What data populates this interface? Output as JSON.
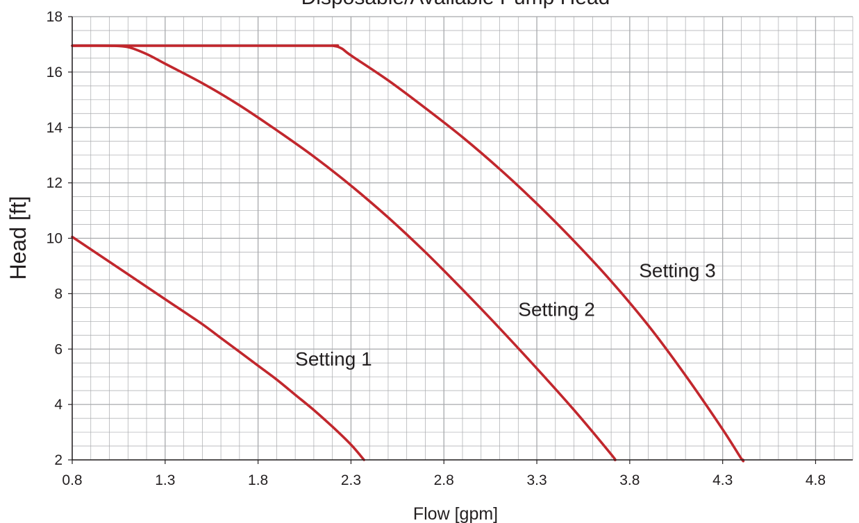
{
  "chart_data": {
    "type": "line",
    "title": "Disposable/Available Pump Head",
    "xlabel": "Flow [gpm]",
    "ylabel": "Head [ft]",
    "xlim": [
      0.8,
      5.0
    ],
    "ylim": [
      2,
      18
    ],
    "x_ticks": [
      "0.8",
      "1.3",
      "1.8",
      "2.3",
      "2.8",
      "3.3",
      "3.8",
      "4.3",
      "4.8"
    ],
    "y_ticks": [
      "2",
      "4",
      "6",
      "8",
      "10",
      "12",
      "14",
      "16",
      "18"
    ],
    "grid": true,
    "colors": {
      "curve": "#c1272d",
      "grid": "#a7a9ac",
      "axis": "#231f20"
    },
    "series": [
      {
        "name": "Setting 1",
        "points": [
          [
            0.8,
            10.05
          ],
          [
            0.9,
            9.6
          ],
          [
            1.0,
            9.15
          ],
          [
            1.1,
            8.7
          ],
          [
            1.2,
            8.25
          ],
          [
            1.3,
            7.8
          ],
          [
            1.4,
            7.35
          ],
          [
            1.5,
            6.9
          ],
          [
            1.6,
            6.4
          ],
          [
            1.7,
            5.9
          ],
          [
            1.8,
            5.4
          ],
          [
            1.9,
            4.9
          ],
          [
            2.0,
            4.35
          ],
          [
            2.1,
            3.8
          ],
          [
            2.2,
            3.2
          ],
          [
            2.3,
            2.55
          ],
          [
            2.37,
            2.0
          ]
        ]
      },
      {
        "name": "Setting 2",
        "points": [
          [
            0.8,
            16.95
          ],
          [
            1.0,
            16.95
          ],
          [
            1.1,
            16.9
          ],
          [
            1.2,
            16.65
          ],
          [
            1.3,
            16.3
          ],
          [
            1.5,
            15.6
          ],
          [
            1.7,
            14.8
          ],
          [
            1.9,
            13.9
          ],
          [
            2.1,
            12.95
          ],
          [
            2.3,
            11.9
          ],
          [
            2.5,
            10.75
          ],
          [
            2.7,
            9.5
          ],
          [
            2.9,
            8.15
          ],
          [
            3.1,
            6.75
          ],
          [
            3.3,
            5.3
          ],
          [
            3.5,
            3.8
          ],
          [
            3.7,
            2.2
          ],
          [
            3.72,
            2.0
          ]
        ]
      },
      {
        "name": "Setting 3",
        "points": [
          [
            0.8,
            16.95
          ],
          [
            2.1,
            16.95
          ],
          [
            2.2,
            16.95
          ],
          [
            2.25,
            16.85
          ],
          [
            2.3,
            16.6
          ],
          [
            2.5,
            15.7
          ],
          [
            2.7,
            14.7
          ],
          [
            2.9,
            13.65
          ],
          [
            3.1,
            12.5
          ],
          [
            3.3,
            11.25
          ],
          [
            3.5,
            9.9
          ],
          [
            3.7,
            8.45
          ],
          [
            3.9,
            6.85
          ],
          [
            4.1,
            5.05
          ],
          [
            4.3,
            3.1
          ],
          [
            4.4,
            2.05
          ],
          [
            4.41,
            2.0
          ]
        ]
      }
    ]
  }
}
